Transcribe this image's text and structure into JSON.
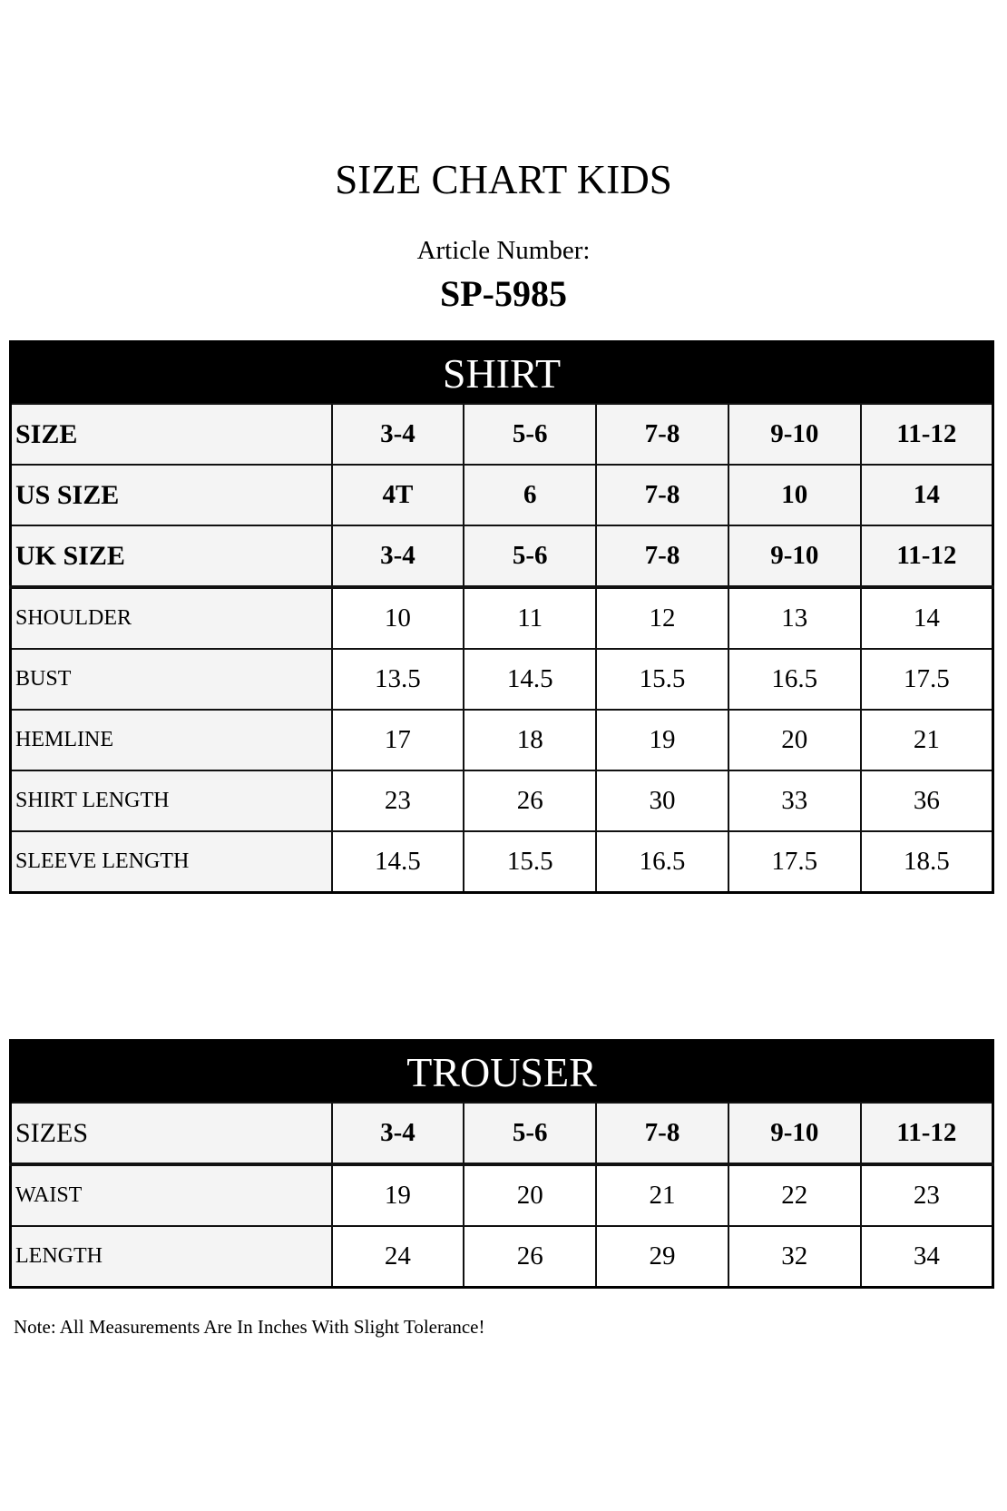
{
  "title": "SIZE CHART KIDS",
  "article_label": "Article Number:",
  "article_number": "SP-5985",
  "shirt": {
    "heading": "SHIRT",
    "size_rows": [
      {
        "label": "SIZE",
        "values": [
          "3-4",
          "5-6",
          "7-8",
          "9-10",
          "11-12"
        ]
      },
      {
        "label": "US SIZE",
        "values": [
          "4T",
          "6",
          "7-8",
          "10",
          "14"
        ]
      },
      {
        "label": "UK SIZE",
        "values": [
          "3-4",
          "5-6",
          "7-8",
          "9-10",
          "11-12"
        ]
      }
    ],
    "rows": [
      {
        "label": "SHOULDER",
        "values": [
          "10",
          "11",
          "12",
          "13",
          "14"
        ]
      },
      {
        "label": "BUST",
        "values": [
          "13.5",
          "14.5",
          "15.5",
          "16.5",
          "17.5"
        ]
      },
      {
        "label": "HEMLINE",
        "values": [
          "17",
          "18",
          "19",
          "20",
          "21"
        ]
      },
      {
        "label": "SHIRT LENGTH",
        "values": [
          "23",
          "26",
          "30",
          "33",
          "36"
        ]
      },
      {
        "label": "SLEEVE LENGTH",
        "values": [
          "14.5",
          "15.5",
          "16.5",
          "17.5",
          "18.5"
        ]
      }
    ]
  },
  "trouser": {
    "heading": "TROUSER",
    "size_row": {
      "label": "SIZES",
      "values": [
        "3-4",
        "5-6",
        "7-8",
        "9-10",
        "11-12"
      ]
    },
    "rows": [
      {
        "label": "WAIST",
        "values": [
          "19",
          "20",
          "21",
          "22",
          "23"
        ]
      },
      {
        "label": "LENGTH",
        "values": [
          "24",
          "26",
          "29",
          "32",
          "34"
        ]
      }
    ]
  },
  "note": "Note: All Measurements Are In Inches With Slight Tolerance!"
}
